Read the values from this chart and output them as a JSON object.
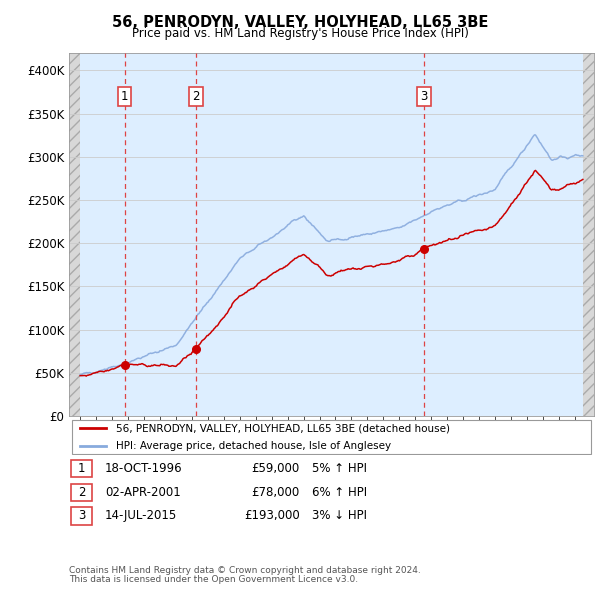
{
  "title": "56, PENRODYN, VALLEY, HOLYHEAD, LL65 3BE",
  "subtitle": "Price paid vs. HM Land Registry's House Price Index (HPI)",
  "legend_line1": "56, PENRODYN, VALLEY, HOLYHEAD, LL65 3BE (detached house)",
  "legend_line2": "HPI: Average price, detached house, Isle of Anglesey",
  "footer1": "Contains HM Land Registry data © Crown copyright and database right 2024.",
  "footer2": "This data is licensed under the Open Government Licence v3.0.",
  "sales": [
    {
      "num": 1,
      "date": "18-OCT-1996",
      "price": 59000,
      "pct": "5%",
      "dir": "↑",
      "year": 1996.79
    },
    {
      "num": 2,
      "date": "02-APR-2001",
      "price": 78000,
      "pct": "6%",
      "dir": "↑",
      "year": 2001.25
    },
    {
      "num": 3,
      "date": "14-JUL-2015",
      "price": 193000,
      "pct": "3%",
      "dir": "↓",
      "year": 2015.54
    }
  ],
  "ylim": [
    0,
    420000
  ],
  "yticks": [
    0,
    50000,
    100000,
    150000,
    200000,
    250000,
    300000,
    350000,
    400000
  ],
  "ytick_labels": [
    "£0",
    "£50K",
    "£100K",
    "£150K",
    "£200K",
    "£250K",
    "£300K",
    "£350K",
    "£400K"
  ],
  "color_red": "#cc0000",
  "color_blue": "#88aadd",
  "color_dashed": "#dd4444",
  "bg_hatch_color": "#d0d0d0",
  "bg_main": "#ddeeff",
  "grid_color": "#cccccc",
  "xlim_left": 1993.3,
  "xlim_right": 2026.2,
  "data_start": 1994.0,
  "data_end": 2025.5
}
